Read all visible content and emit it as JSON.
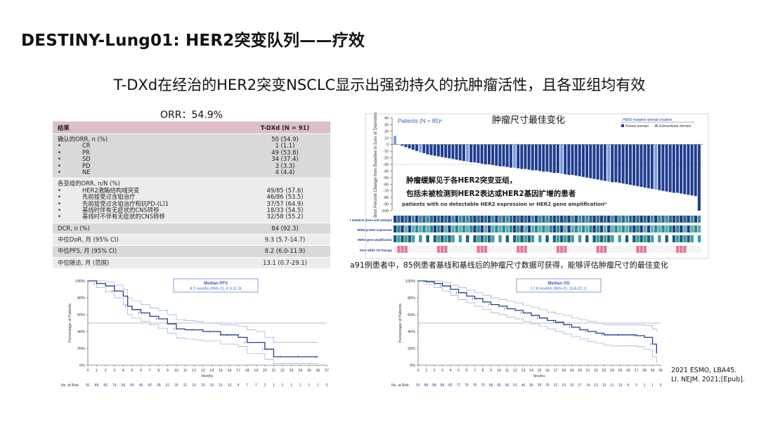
{
  "page": {
    "title": "DESTINY-Lung01: HER2突变队列——疗效",
    "subtitle": "T-DXd在经治的HER2突变NSCLC显示出强劲持久的抗肿瘤活性，且各亚组均有效",
    "reference_lines": [
      "2021 ESMO, LBA45.",
      "LI. NEJM. 2021;[Epub]."
    ]
  },
  "orr_table": {
    "label": "ORR：54.9%",
    "header": {
      "col1": "结果",
      "col2": "T-DXd (N = 91)"
    },
    "blocks": [
      {
        "rows": [
          {
            "label": "确认的ORR, n (%)",
            "value": "50 (54.9)",
            "indent": false
          },
          {
            "label": "CR",
            "value": "1 (1.1)",
            "indent": true
          },
          {
            "label": "PR",
            "value": "49 (53.8)",
            "indent": true
          },
          {
            "label": "SD",
            "value": "34 (37.4)",
            "indent": true
          },
          {
            "label": "PD",
            "value": "3 (3.3)",
            "indent": true
          },
          {
            "label": "NE",
            "value": "4 (4.4)",
            "indent": true
          }
        ]
      },
      {
        "rows": [
          {
            "label": "各亚组的ORR, n/N (%)",
            "value": "",
            "indent": false
          },
          {
            "label": "HER2激酶结构域突变",
            "value": "49/85 (57.6)",
            "indent": true
          },
          {
            "label": "先前接受过含铂治疗",
            "value": "46/86 (53.5)",
            "indent": true
          },
          {
            "label": "先前接受过含铂治疗和抗PD-(L)1",
            "value": "37/57 (64.9)",
            "indent": true
          },
          {
            "label": "基线时伴有无症状的CNS转移",
            "value": "18/33 (54.5)",
            "indent": true
          },
          {
            "label": "基线时不伴有无症状的CNS转移",
            "value": "32/58 (55.2)",
            "indent": true
          }
        ]
      },
      {
        "rows": [
          {
            "label": "DCR, n (%)",
            "value": "84 (92.3)",
            "indent": false
          }
        ]
      },
      {
        "rows": [
          {
            "label": "中位DoR, 月 (95% CI)",
            "value": "9.3 (5.7-14.7)",
            "indent": false
          }
        ]
      },
      {
        "rows": [
          {
            "label": "中位PFS, 月 (95% CI)",
            "value": "8.2 (6.0-11.9)",
            "indent": false
          }
        ]
      },
      {
        "rows": [
          {
            "label": "中位随访, 月 (范围)",
            "value": "13.1 (0.7-29.1)",
            "indent": false
          }
        ]
      }
    ]
  },
  "waterfall": {
    "title": "肿瘤尺寸最佳变化",
    "patients_label": "Patients (N = 85)ᵃ",
    "ylabel": "Best Percent Change from Baseline in Sum of Diameters",
    "legend_title": "HER2 mutation domain location",
    "legend_items": [
      {
        "name": "Kinase domain",
        "color": "#1f3d8f"
      },
      {
        "name": "Extracellular domain",
        "color": "#7f9fd6"
      }
    ],
    "note_line1": "肿瘤缓解见于各HER2突变亚组，",
    "note_line2": "包括未被检测到HER2表达或HER2基因扩增的患者",
    "note_line3": "patients with no detectable HER2 expression or HER2 gene amplificationᵇ",
    "heatmap_rows": [
      "HER2 mutation (exon and subtype)",
      "HER2 protein expression",
      "HER2 gene amplification",
      "Prior HER2 TKI therapy"
    ],
    "caption": "a91例患者中，85例患者基线和基线后的肿瘤尺寸数据可获得，能够评估肿瘤尺寸的最佳变化"
  },
  "chart_data": [
    {
      "type": "bar",
      "title": "肿瘤尺寸最佳变化",
      "ylabel": "Best Percent Change from Baseline in Sum of Diameters",
      "ylim": [
        -100,
        40
      ],
      "yticks": [
        40,
        30,
        20,
        10,
        0,
        -10,
        -20,
        -30,
        -40,
        -50,
        -60,
        -70,
        -80,
        -90,
        -100
      ],
      "series": [
        {
          "name": "Kinase domain",
          "values": [
            13,
            0,
            -2,
            -4,
            -6,
            -8,
            -10,
            -12,
            -13,
            -15,
            -16,
            -17,
            -18,
            -19,
            -20,
            -21,
            -22,
            -23,
            -24,
            -25,
            -26,
            -27,
            -27,
            -28,
            -29,
            -30,
            -30,
            -31,
            -32,
            -33,
            -33,
            -34,
            -35,
            -35,
            -36,
            -37,
            -37,
            -38,
            -39,
            -39,
            -40,
            -41,
            -41,
            -42,
            -43,
            -43,
            -44,
            -45,
            -46,
            -46,
            -47,
            -48,
            -49,
            -50,
            -51,
            -52,
            -53,
            -54,
            -55,
            -56,
            -57,
            -57,
            -58,
            -59,
            -60,
            -61,
            -62,
            -63,
            -64,
            -65,
            -66,
            -67,
            -68,
            -69,
            -70,
            -71,
            -72,
            -73,
            -73,
            -74,
            -75,
            -76,
            -77,
            -78,
            -100
          ]
        }
      ]
    },
    {
      "type": "line",
      "title": "Median PFS",
      "annotation": "8.2 months (95% CI, 6.0-11.9)",
      "xlabel": "Months",
      "ylabel": "Percentage of Patients",
      "xlim": [
        0,
        27
      ],
      "ylim": [
        0,
        100
      ],
      "xticks": [
        0,
        1,
        2,
        3,
        4,
        5,
        6,
        7,
        8,
        9,
        10,
        11,
        12,
        13,
        14,
        15,
        16,
        17,
        18,
        19,
        20,
        21,
        22,
        23,
        24,
        25,
        26,
        27
      ],
      "yticks": [
        "0%",
        "20%",
        "40%",
        "60%",
        "80%",
        "100%"
      ],
      "reference_y": 50,
      "x": [
        0,
        1,
        2,
        3,
        4,
        4.5,
        5,
        6,
        7,
        8,
        9,
        10,
        11,
        12,
        13,
        14,
        15,
        16,
        17,
        18,
        19,
        20,
        21,
        22,
        23,
        24,
        25,
        26
      ],
      "y": [
        100,
        97,
        94,
        88,
        82,
        70,
        66,
        62,
        58,
        55,
        49,
        43,
        42,
        42,
        40,
        40,
        36,
        36,
        33,
        27,
        27,
        19,
        10,
        10,
        10,
        10,
        10,
        10
      ],
      "ci_upper": [
        100,
        100,
        99,
        95,
        90,
        80,
        76,
        72,
        68,
        65,
        60,
        54,
        53,
        52,
        50,
        50,
        48,
        48,
        46,
        42,
        40,
        33,
        27,
        27,
        27,
        27,
        27,
        27
      ],
      "ci_lower": [
        100,
        92,
        87,
        80,
        72,
        60,
        56,
        52,
        48,
        44,
        38,
        32,
        31,
        30,
        29,
        29,
        25,
        25,
        22,
        14,
        14,
        7,
        2,
        2,
        2,
        2,
        2,
        2
      ],
      "at_risk_label": "No. at Risk:",
      "at_risk": [
        "91",
        "89",
        "83",
        "74",
        "69",
        "55",
        "49",
        "42",
        "39",
        "31",
        "25",
        "21",
        "19",
        "19",
        "15",
        "15",
        "13",
        "9",
        "7",
        "7",
        "2",
        "1",
        "1",
        "1",
        "1",
        "1",
        "1",
        "0"
      ]
    },
    {
      "type": "line",
      "title": "Median OS",
      "annotation": "17.8 months (95% CI, 13.8-22.1)",
      "xlabel": "Months",
      "ylabel": "Percentage of Patients",
      "xlim": [
        0,
        30
      ],
      "ylim": [
        0,
        100
      ],
      "xticks": [
        0,
        1,
        2,
        3,
        4,
        5,
        6,
        7,
        8,
        9,
        10,
        11,
        12,
        13,
        14,
        15,
        16,
        17,
        18,
        19,
        20,
        21,
        22,
        23,
        24,
        25,
        26,
        27,
        28,
        29,
        30
      ],
      "yticks": [
        "0%",
        "20%",
        "40%",
        "60%",
        "80%",
        "100%"
      ],
      "reference_y": 50,
      "x": [
        0,
        1,
        2,
        3,
        4,
        5,
        6,
        7,
        8,
        9,
        10,
        11,
        12,
        13,
        14,
        15,
        16,
        17,
        18,
        19,
        20,
        21,
        22,
        23,
        24,
        25,
        26,
        27,
        28,
        29,
        29.5
      ],
      "y": [
        100,
        99,
        97,
        94,
        90,
        86,
        82,
        79,
        75,
        72,
        70,
        67,
        65,
        62,
        59,
        56,
        53,
        51,
        48,
        45,
        42,
        40,
        38,
        36,
        36,
        36,
        36,
        35,
        33,
        25,
        14
      ],
      "ci_upper": [
        100,
        100,
        100,
        98,
        95,
        92,
        89,
        86,
        83,
        80,
        78,
        76,
        74,
        71,
        69,
        66,
        63,
        61,
        59,
        56,
        54,
        52,
        50,
        48,
        48,
        48,
        48,
        48,
        47,
        43,
        40
      ],
      "ci_lower": [
        100,
        96,
        92,
        88,
        83,
        78,
        74,
        70,
        66,
        62,
        60,
        57,
        55,
        52,
        49,
        46,
        43,
        40,
        37,
        34,
        31,
        28,
        26,
        24,
        23,
        23,
        23,
        22,
        19,
        10,
        2
      ],
      "at_risk_label": "No. at Risk:",
      "at_risk": [
        "91",
        "89",
        "88",
        "86",
        "82",
        "77",
        "75",
        "75",
        "70",
        "68",
        "65",
        "56",
        "51",
        "46",
        "36",
        "29",
        "25",
        "22",
        "19",
        "19",
        "17",
        "14",
        "13",
        "13",
        "11",
        "10",
        "6",
        "3",
        "1",
        "1",
        "0"
      ]
    }
  ]
}
